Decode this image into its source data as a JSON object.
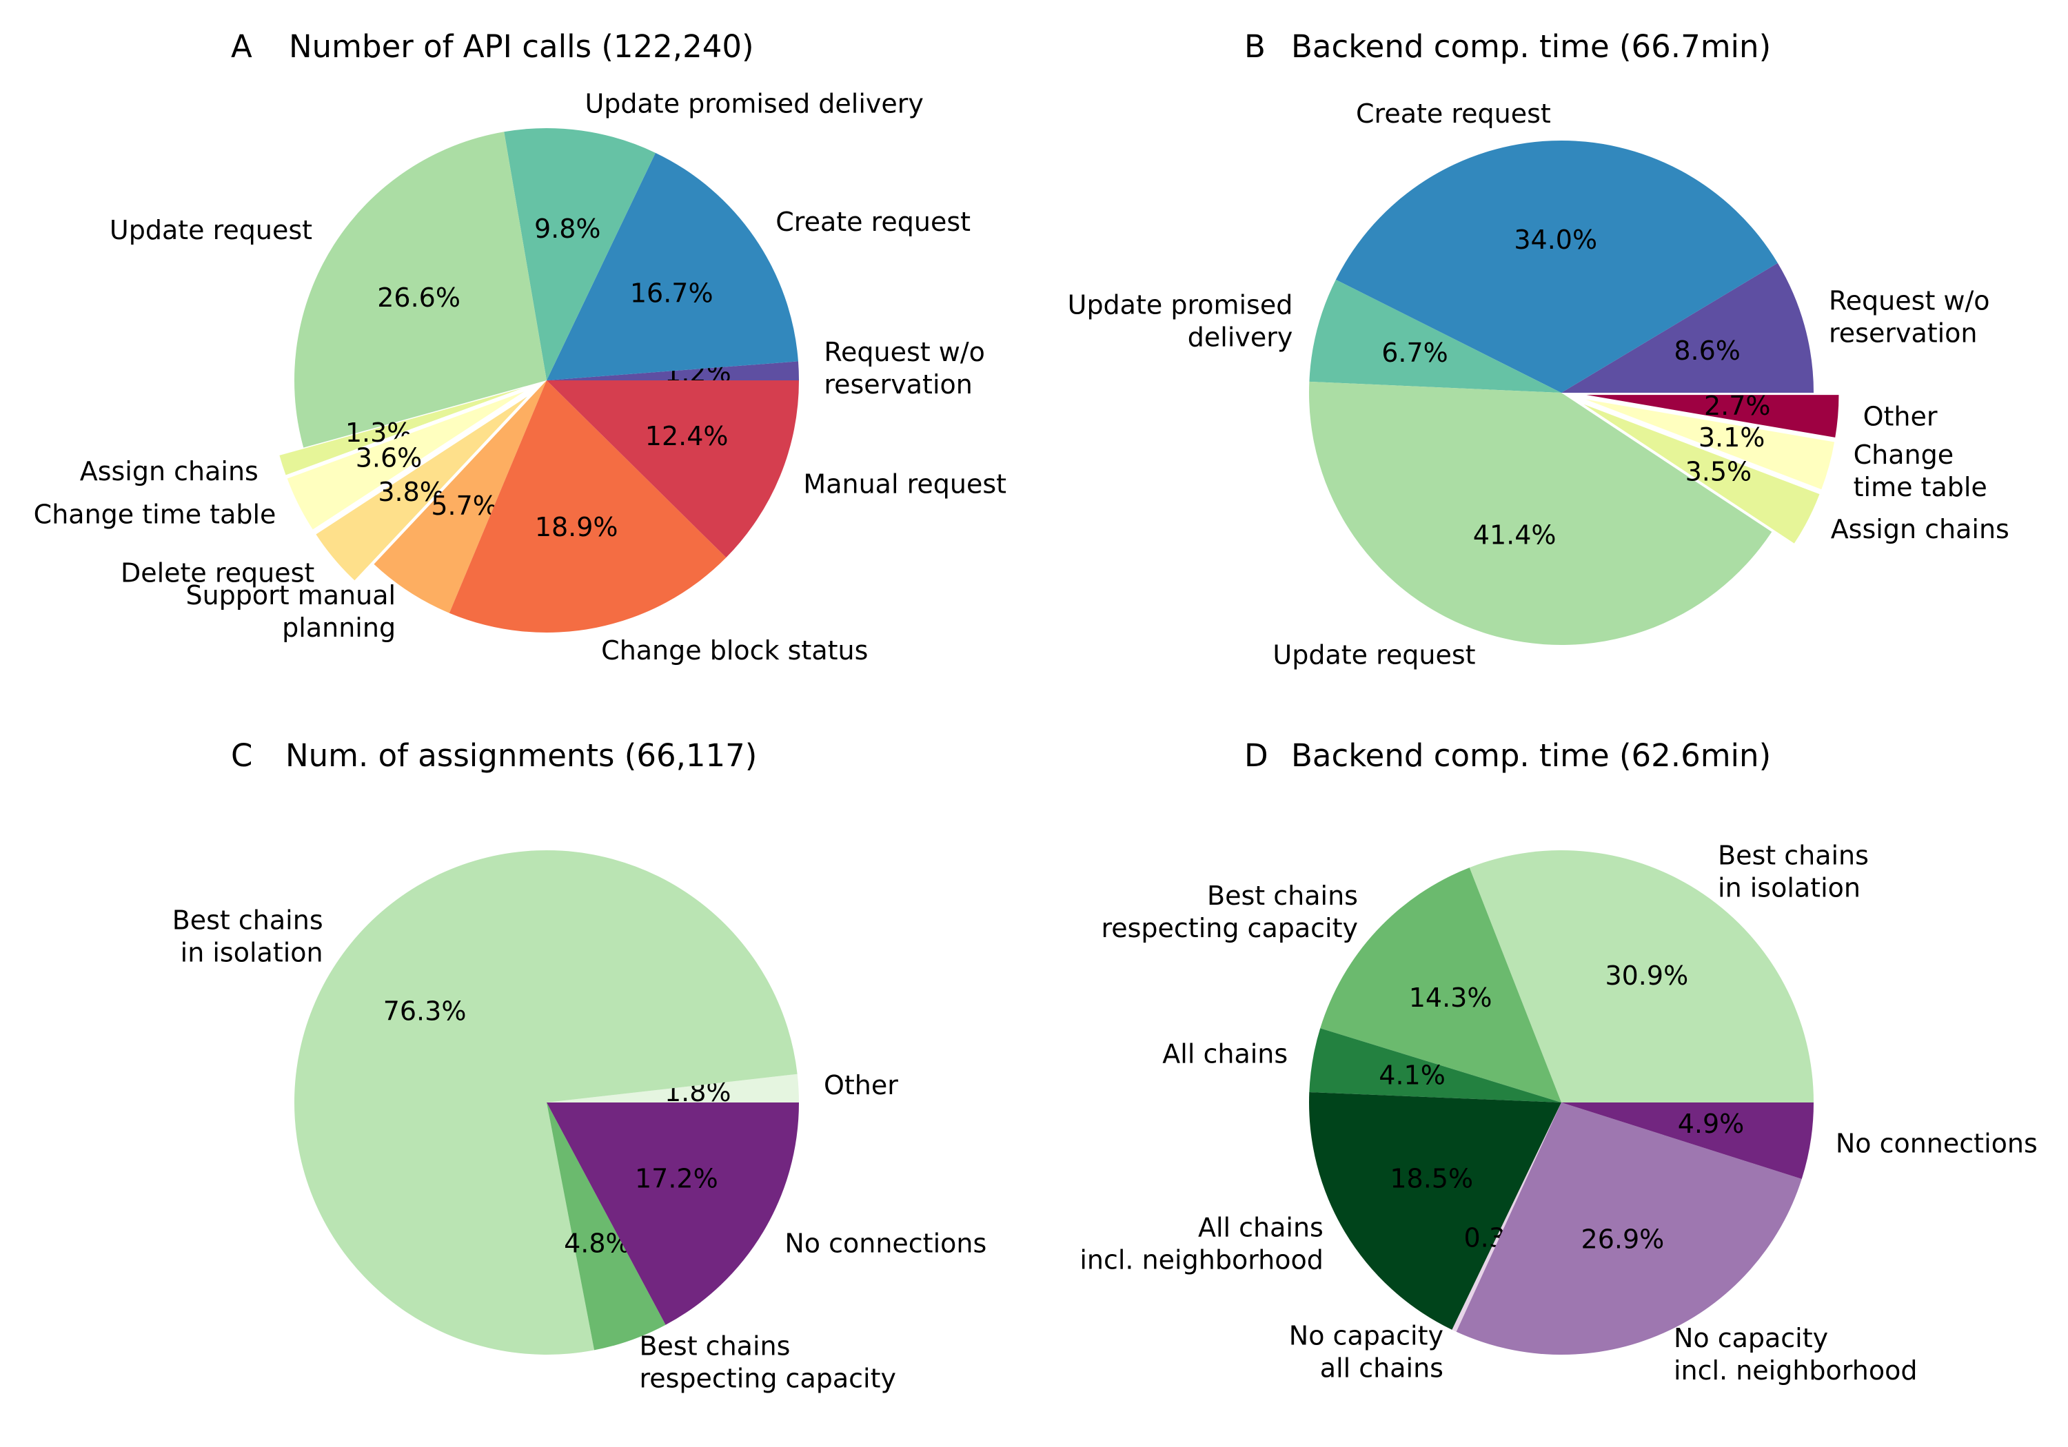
{
  "chart_data": [
    {
      "type": "pie",
      "panel": "A",
      "title": "Number of API calls (122,240)",
      "slices": [
        {
          "label": "Request w/o\nreservation",
          "value": 1.2,
          "pct": "1.2%",
          "color": "#5e4fa2"
        },
        {
          "label": "Create request",
          "value": 16.7,
          "pct": "16.7%",
          "color": "#3288bd"
        },
        {
          "label": "Update promised delivery",
          "value": 9.8,
          "pct": "9.8%",
          "color": "#66c2a5"
        },
        {
          "label": "Update request",
          "value": 26.6,
          "pct": "26.6%",
          "color": "#abdda4"
        },
        {
          "label": "Assign chains",
          "value": 1.3,
          "pct": "1.3%",
          "color": "#e6f598"
        },
        {
          "label": "Change time table",
          "value": 3.6,
          "pct": "3.6%",
          "color": "#ffffbf"
        },
        {
          "label": "Delete request",
          "value": 3.8,
          "pct": "3.8%",
          "color": "#fee08b"
        },
        {
          "label": "Support manual\nplanning",
          "value": 5.7,
          "pct": "5.7%",
          "color": "#fdae61"
        },
        {
          "label": "Change block status",
          "value": 18.9,
          "pct": "18.9%",
          "color": "#f46d43"
        },
        {
          "label": "Manual request",
          "value": 12.4,
          "pct": "12.4%",
          "color": "#d53e4f"
        }
      ]
    },
    {
      "type": "pie",
      "panel": "B",
      "title": "Backend comp. time (66.7min)",
      "slices": [
        {
          "label": "Request w/o\nreservation",
          "value": 8.6,
          "pct": "8.6%",
          "color": "#5e4fa2"
        },
        {
          "label": "Create request",
          "value": 34.0,
          "pct": "34.0%",
          "color": "#3288bd"
        },
        {
          "label": "Update promised\ndelivery",
          "value": 6.7,
          "pct": "6.7%",
          "color": "#66c2a5"
        },
        {
          "label": "Update request",
          "value": 41.4,
          "pct": "41.4%",
          "color": "#abdda4"
        },
        {
          "label": "Assign chains",
          "value": 3.5,
          "pct": "3.5%",
          "color": "#e6f598"
        },
        {
          "label": "Change\ntime table",
          "value": 3.1,
          "pct": "3.1%",
          "color": "#ffffbf"
        },
        {
          "label": "Other",
          "value": 2.7,
          "pct": "2.7%",
          "color": "#9e0142"
        }
      ]
    },
    {
      "type": "pie",
      "panel": "C",
      "title": "Num. of assignments (66,117)",
      "slices": [
        {
          "label": "Other",
          "value": 1.8,
          "pct": "1.8%",
          "color": "#e5f5e0"
        },
        {
          "label": "Best chains\nin isolation",
          "value": 76.3,
          "pct": "76.3%",
          "color": "#bae4b3"
        },
        {
          "label": "Best chains\nrespecting capacity",
          "value": 4.8,
          "pct": "4.8%",
          "color": "#6bba6e"
        },
        {
          "label": "No connections",
          "value": 17.2,
          "pct": "17.2%",
          "color": "#722680"
        }
      ]
    },
    {
      "type": "pie",
      "panel": "D",
      "title": "Backend comp. time (62.6min)",
      "slices": [
        {
          "label": "Best chains\nin isolation",
          "value": 30.9,
          "pct": "30.9%",
          "color": "#bae4b3"
        },
        {
          "label": "Best chains\nrespecting capacity",
          "value": 14.3,
          "pct": "14.3%",
          "color": "#6bba6e"
        },
        {
          "label": "All chains",
          "value": 4.1,
          "pct": "4.1%",
          "color": "#238140"
        },
        {
          "label": "All chains\nincl. neighborhood",
          "value": 18.5,
          "pct": "18.5%",
          "color": "#00441b"
        },
        {
          "label": "No capacity\nall chains",
          "value": 0.3,
          "pct": "0.3%",
          "color": "#e7d4e8"
        },
        {
          "label": "No capacity\nincl. neighborhood",
          "value": 26.9,
          "pct": "26.9%",
          "color": "#9e77b0"
        },
        {
          "label": "No connections",
          "value": 4.9,
          "pct": "4.9%",
          "color": "#722680"
        }
      ]
    }
  ]
}
